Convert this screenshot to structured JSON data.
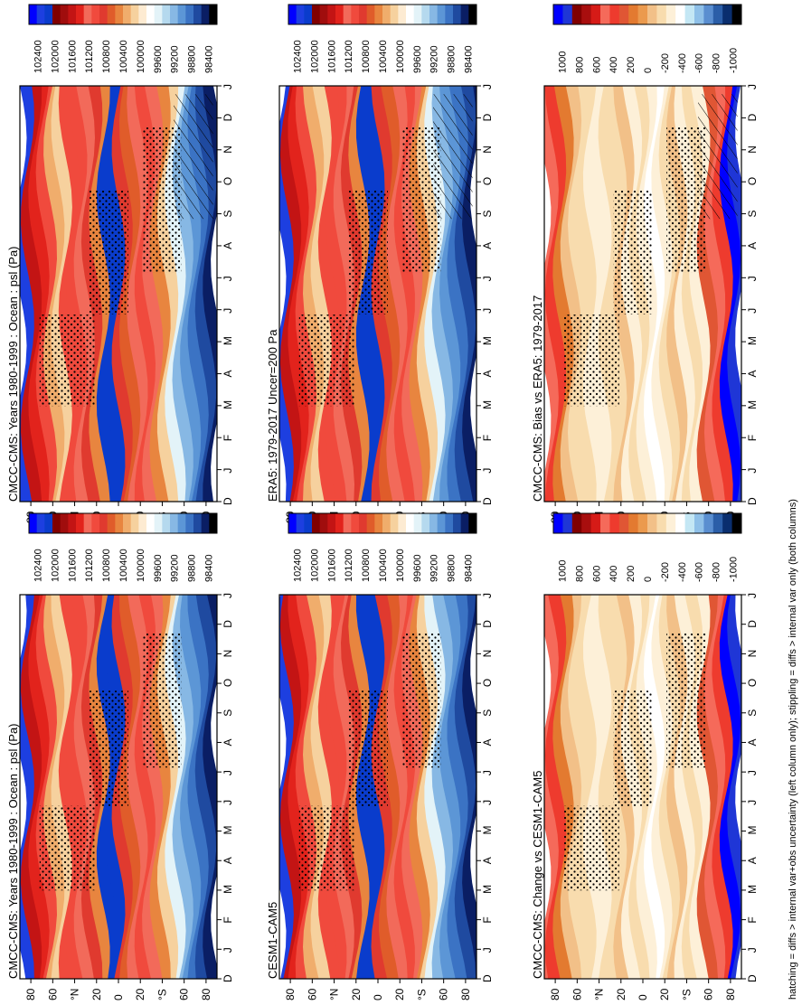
{
  "footer_note": "hatching = diffs > internal var+obs uncertainty (left column only); stippling = diffs > internal var only (both columns)",
  "colors": {
    "abs_scale": [
      "#000000",
      "#0a1e64",
      "#1f4aa0",
      "#3b73c4",
      "#5c96d6",
      "#87b8e4",
      "#b5d9ee",
      "#e3f3f8",
      "#ffffff",
      "#fdebd2",
      "#f6d19e",
      "#f0ad6c",
      "#e8853f",
      "#e05c2a",
      "#e03a2f",
      "#f04a3d",
      "#f26a5a",
      "#e2231c",
      "#c31414",
      "#a00d0d",
      "#800000",
      "#0a3ccc",
      "#1d3fe0",
      "#0000ff"
    ],
    "diff_scale": [
      "#000000",
      "#0a2e6e",
      "#2b5ea8",
      "#5a8ed0",
      "#8fc0e8",
      "#c4e7f4",
      "#ffffff",
      "#fdf0d8",
      "#f8dcae",
      "#f2c088",
      "#eb9a4e",
      "#e37a30",
      "#e05634",
      "#ee3b2e",
      "#f56a5a",
      "#d61b17",
      "#a80e0e",
      "#800000",
      "#1f36d6",
      "#0000ff"
    ]
  },
  "chart_data": [
    {
      "type": "heatmap",
      "title": "CMCC-CMS: Years 1980-1999 : Ocean : psl (Pa)",
      "x_tick_labels": [
        "D",
        "J",
        "F",
        "M",
        "A",
        "M",
        "J",
        "J",
        "A",
        "S",
        "O",
        "N",
        "D",
        "J"
      ],
      "y_tick_labels": [
        "80",
        "60",
        "°N",
        "20",
        "0",
        "20",
        "°S",
        "60",
        "80"
      ],
      "colorbar_labels": [
        "102400",
        "102000",
        "101600",
        "101200",
        "100800",
        "100400",
        "100000",
        "99600",
        "99200",
        "98800",
        "98400"
      ],
      "hatching": true
    },
    {
      "type": "heatmap",
      "title": "CMCC-CMS: Years 1980-1999 : Ocean : psl (Pa)",
      "x_tick_labels": [
        "D",
        "J",
        "F",
        "M",
        "A",
        "M",
        "J",
        "J",
        "A",
        "S",
        "O",
        "N",
        "D",
        "J"
      ],
      "y_tick_labels": [
        "80",
        "60",
        "°N",
        "20",
        "0",
        "20",
        "°S",
        "60",
        "80"
      ],
      "colorbar_labels": [
        "102400",
        "102000",
        "101600",
        "101200",
        "100800",
        "100400",
        "100000",
        "99600",
        "99200",
        "98800",
        "98400"
      ],
      "hatching": false
    },
    {
      "type": "heatmap",
      "title": "ERA5: 1979-2017 Uncer=200 Pa",
      "x_tick_labels": [
        "D",
        "J",
        "F",
        "M",
        "A",
        "M",
        "J",
        "J",
        "A",
        "S",
        "O",
        "N",
        "D",
        "J"
      ],
      "y_tick_labels": [
        "80",
        "60",
        "°N",
        "20",
        "0",
        "20",
        "°S",
        "60",
        "80"
      ],
      "colorbar_labels": [
        "102400",
        "102000",
        "101600",
        "101200",
        "100800",
        "100400",
        "100000",
        "99600",
        "99200",
        "98800",
        "98400"
      ],
      "hatching": true
    },
    {
      "type": "heatmap",
      "title": "CESM1-CAM5",
      "x_tick_labels": [
        "D",
        "J",
        "F",
        "M",
        "A",
        "M",
        "J",
        "J",
        "A",
        "S",
        "O",
        "N",
        "D",
        "J"
      ],
      "y_tick_labels": [
        "80",
        "60",
        "°N",
        "20",
        "0",
        "20",
        "°S",
        "60",
        "80"
      ],
      "colorbar_labels": [
        "102400",
        "102000",
        "101600",
        "101200",
        "100800",
        "100400",
        "100000",
        "99600",
        "99200",
        "98800",
        "98400"
      ],
      "hatching": false
    },
    {
      "type": "heatmap",
      "title": "CMCC-CMS: Bias vs ERA5: 1979-2017",
      "x_tick_labels": [
        "D",
        "J",
        "F",
        "M",
        "A",
        "M",
        "J",
        "J",
        "A",
        "S",
        "O",
        "N",
        "D",
        "J"
      ],
      "y_tick_labels": [
        "80",
        "60",
        "°N",
        "20",
        "0",
        "20",
        "°S",
        "60",
        "80"
      ],
      "colorbar_labels": [
        "1000",
        "800",
        "600",
        "400",
        "200",
        "0",
        "-200",
        "-400",
        "-600",
        "-800",
        "-1000"
      ],
      "hatching": true
    },
    {
      "type": "heatmap",
      "title": "CMCC-CMS: Change vs CESM1-CAM5",
      "x_tick_labels": [
        "D",
        "J",
        "F",
        "M",
        "A",
        "M",
        "J",
        "J",
        "A",
        "S",
        "O",
        "N",
        "D",
        "J"
      ],
      "y_tick_labels": [
        "80",
        "60",
        "°N",
        "20",
        "0",
        "20",
        "°S",
        "60",
        "80"
      ],
      "colorbar_labels": [
        "1000",
        "800",
        "600",
        "400",
        "200",
        "0",
        "-200",
        "-400",
        "-600",
        "-800",
        "-1000"
      ],
      "hatching": false
    }
  ]
}
